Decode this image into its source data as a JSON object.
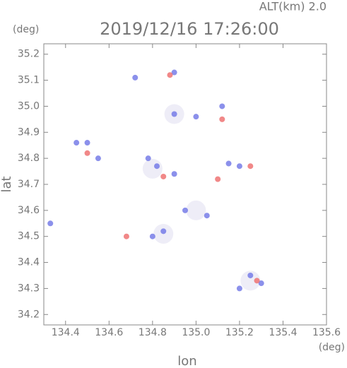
{
  "chart_data": {
    "type": "scatter",
    "title": "2019/12/16 17:26:00",
    "subtitle": "ALT(km) 2.0",
    "x_label": "lon",
    "y_label": "lat",
    "x_unit": "(deg)",
    "y_unit": "(deg)",
    "xlim": [
      134.3,
      135.6
    ],
    "ylim": [
      34.16,
      35.24
    ],
    "xticks": [
      134.4,
      134.6,
      134.8,
      {
        "value": 135.0,
        "label": "135.0"
      },
      135.2,
      135.4,
      135.6
    ],
    "yticks": [
      34.2,
      34.3,
      34.4,
      34.5,
      34.6,
      34.7,
      34.8,
      34.9,
      {
        "value": 35.0,
        "label": "35.0"
      },
      35.1,
      35.2
    ],
    "series": [
      {
        "color": "#ecebf6",
        "x": [
          135.25,
          134.8,
          134.85,
          134.9,
          135.0
        ],
        "y": [
          34.33,
          34.76,
          34.51,
          34.97,
          34.6
        ]
      },
      {
        "color": "#6e74e6",
        "x": [
          134.82,
          134.78,
          134.9,
          134.95,
          135.05,
          134.85,
          134.8,
          135.25,
          135.3,
          135.2,
          134.9,
          134.9,
          135.0,
          135.12,
          134.5,
          134.45,
          134.33,
          135.15,
          135.2,
          134.72,
          134.55
        ],
        "y": [
          34.77,
          34.8,
          34.74,
          34.6,
          34.58,
          34.52,
          34.5,
          34.35,
          34.32,
          34.3,
          35.13,
          34.97,
          34.96,
          35.0,
          34.86,
          34.86,
          34.55,
          34.78,
          34.77,
          35.11,
          34.8
        ]
      },
      {
        "color": "#ee6a6a",
        "x": [
          134.68,
          134.88,
          135.1,
          135.28,
          134.85,
          135.12,
          134.5,
          135.25
        ],
        "y": [
          34.5,
          35.12,
          34.72,
          34.33,
          34.73,
          34.95,
          34.82,
          34.77
        ]
      }
    ]
  }
}
